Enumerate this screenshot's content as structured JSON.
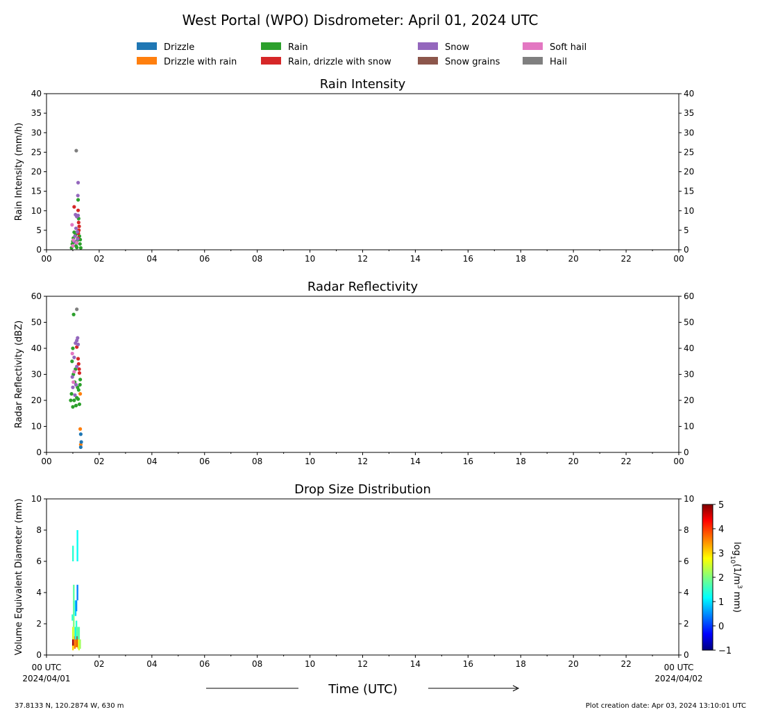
{
  "title": "West Portal (WPO) Disdrometer: April 01, 2024 UTC",
  "legend": [
    {
      "label": "Drizzle",
      "color": "#1f77b4"
    },
    {
      "label": "Drizzle with rain",
      "color": "#ff7f0e"
    },
    {
      "label": "Rain",
      "color": "#2ca02c"
    },
    {
      "label": "Rain, drizzle with snow",
      "color": "#d62728"
    },
    {
      "label": "Snow",
      "color": "#9467bd"
    },
    {
      "label": "Snow grains",
      "color": "#8c564b"
    },
    {
      "label": "Soft hail",
      "color": "#e377c2"
    },
    {
      "label": "Hail",
      "color": "#7f7f7f"
    }
  ],
  "x_tick_labels": [
    "00",
    "02",
    "04",
    "06",
    "08",
    "10",
    "12",
    "14",
    "16",
    "18",
    "20",
    "22",
    "00"
  ],
  "x_start_label": [
    "00 UTC",
    "2024/04/01"
  ],
  "x_end_label": [
    "00 UTC",
    "2024/04/02"
  ],
  "xlabel": "Time (UTC)",
  "footer_left": "37.8133 N, 120.2874 W, 630 m",
  "footer_right": "Plot creation date: Apr 03, 2024 13:10:01 UTC",
  "chart_data": [
    {
      "type": "scatter",
      "title": "Rain Intensity",
      "ylabel": "Rain Intensity (mm/h)",
      "xlim": [
        0,
        24
      ],
      "ylim": [
        0,
        40
      ],
      "yticks": [
        0,
        5,
        10,
        15,
        20,
        25,
        30,
        35,
        40
      ],
      "series": [
        {
          "name": "Rain",
          "color": "#2ca02c",
          "points": [
            [
              0.95,
              0.5
            ],
            [
              0.98,
              1.5
            ],
            [
              1.0,
              2.2
            ],
            [
              1.02,
              3.0
            ],
            [
              1.05,
              4.5
            ],
            [
              1.07,
              2.0
            ],
            [
              1.1,
              3.8
            ],
            [
              1.12,
              1.0
            ],
            [
              1.15,
              0.6
            ],
            [
              1.18,
              2.5
            ],
            [
              1.2,
              12.8
            ],
            [
              1.22,
              8.0
            ],
            [
              1.25,
              3.5
            ],
            [
              1.27,
              1.5
            ],
            [
              1.3,
              0.5
            ],
            [
              1.28,
              2.6
            ]
          ]
        },
        {
          "name": "Rain, drizzle with snow",
          "color": "#d62728",
          "points": [
            [
              1.05,
              11.0
            ],
            [
              1.2,
              10.1
            ],
            [
              1.22,
              7.0
            ],
            [
              1.24,
              6.0
            ],
            [
              1.23,
              5.0
            ],
            [
              1.21,
              4.2
            ],
            [
              1.2,
              3.0
            ]
          ]
        },
        {
          "name": "Snow",
          "color": "#9467bd",
          "points": [
            [
              1.2,
              17.2
            ],
            [
              1.19,
              13.9
            ],
            [
              1.1,
              9.0
            ],
            [
              1.15,
              8.5
            ],
            [
              1.12,
              5.5
            ],
            [
              1.08,
              3.5
            ],
            [
              1.18,
              2.8
            ],
            [
              1.13,
              1.8
            ],
            [
              1.05,
              2.2
            ],
            [
              1.17,
              4.6
            ],
            [
              1.2,
              8.8
            ]
          ]
        },
        {
          "name": "Soft hail",
          "color": "#e377c2",
          "points": [
            [
              0.97,
              6.4
            ],
            [
              1.0,
              1.0
            ],
            [
              1.02,
              2.5
            ],
            [
              1.15,
              1.8
            ]
          ]
        },
        {
          "name": "Hail",
          "color": "#7f7f7f",
          "points": [
            [
              1.13,
              25.4
            ]
          ]
        }
      ]
    },
    {
      "type": "scatter",
      "title": "Radar Reflectivity",
      "ylabel": "Radar Reflectivity (dBZ)",
      "xlim": [
        0,
        24
      ],
      "ylim": [
        0,
        60
      ],
      "yticks": [
        0,
        10,
        20,
        30,
        40,
        50,
        60
      ],
      "series": [
        {
          "name": "Rain",
          "color": "#2ca02c",
          "points": [
            [
              0.92,
              20.0
            ],
            [
              0.95,
              22.5
            ],
            [
              0.97,
              35.0
            ],
            [
              1.0,
              17.5
            ],
            [
              1.0,
              40.0
            ],
            [
              1.02,
              30.0
            ],
            [
              1.03,
              53.0
            ],
            [
              1.05,
              20.0
            ],
            [
              1.07,
              27.0
            ],
            [
              1.1,
              32.0
            ],
            [
              1.12,
              18.0
            ],
            [
              1.15,
              21.0
            ],
            [
              1.18,
              25.0
            ],
            [
              1.2,
              20.5
            ],
            [
              1.22,
              24.0
            ],
            [
              1.25,
              18.5
            ],
            [
              1.27,
              26.0
            ],
            [
              1.28,
              28.0
            ]
          ]
        },
        {
          "name": "Rain, drizzle with snow",
          "color": "#d62728",
          "points": [
            [
              1.15,
              40.5
            ],
            [
              1.2,
              36.0
            ],
            [
              1.22,
              34.0
            ],
            [
              1.24,
              32.0
            ],
            [
              1.25,
              30.5
            ]
          ]
        },
        {
          "name": "Snow",
          "color": "#9467bd",
          "points": [
            [
              0.98,
              29.0
            ],
            [
              1.05,
              36.5
            ],
            [
              1.1,
              42.0
            ],
            [
              1.15,
              43.0
            ],
            [
              1.18,
              44.0
            ],
            [
              1.2,
              41.5
            ],
            [
              1.12,
              26.0
            ],
            [
              1.08,
              22.0
            ],
            [
              1.15,
              33.0
            ],
            [
              1.0,
              25.0
            ]
          ]
        },
        {
          "name": "Soft hail",
          "color": "#e377c2",
          "points": [
            [
              0.98,
              38.0
            ],
            [
              1.02,
              27.0
            ],
            [
              1.05,
              31.0
            ]
          ]
        },
        {
          "name": "Hail",
          "color": "#7f7f7f",
          "points": [
            [
              1.15,
              55.0
            ]
          ]
        },
        {
          "name": "Drizzle with rain",
          "color": "#ff7f0e",
          "points": [
            [
              1.28,
              9.0
            ],
            [
              1.3,
              3.0
            ],
            [
              1.28,
              22.5
            ]
          ]
        },
        {
          "name": "Drizzle",
          "color": "#1f77b4",
          "points": [
            [
              1.3,
              7.0
            ],
            [
              1.32,
              4.0
            ],
            [
              1.3,
              2.0
            ]
          ]
        }
      ]
    },
    {
      "type": "heatmap",
      "title": "Drop Size Distribution",
      "ylabel": "Volume Equivalent Diameter (mm)",
      "xlim": [
        0,
        24
      ],
      "ylim": [
        0,
        10
      ],
      "yticks": [
        0,
        2,
        4,
        6,
        8,
        10
      ],
      "colorbar": {
        "label": "log10(1/m3 mm)",
        "range": [
          -1,
          5
        ],
        "ticks": [
          -1,
          0,
          1,
          2,
          3,
          4,
          5
        ]
      },
      "cells": [
        {
          "x": 1.0,
          "y0": 0.3,
          "y1": 0.8,
          "v": 3.0
        },
        {
          "x": 1.0,
          "y0": 0.6,
          "y1": 1.0,
          "v": 4.8
        },
        {
          "x": 1.0,
          "y0": 1.0,
          "y1": 1.8,
          "v": 2.5
        },
        {
          "x": 1.03,
          "y0": 1.8,
          "y1": 2.5,
          "v": 2.0
        },
        {
          "x": 0.98,
          "y0": 2.2,
          "y1": 2.6,
          "v": 1.5
        },
        {
          "x": 1.03,
          "y0": 2.5,
          "y1": 3.5,
          "v": 1.8
        },
        {
          "x": 1.03,
          "y0": 3.5,
          "y1": 4.5,
          "v": 1.8
        },
        {
          "x": 1.0,
          "y0": 6.0,
          "y1": 7.0,
          "v": 1.5
        },
        {
          "x": 1.07,
          "y0": 0.4,
          "y1": 1.2,
          "v": 3.5
        },
        {
          "x": 1.07,
          "y0": 1.2,
          "y1": 1.8,
          "v": 2.2
        },
        {
          "x": 1.1,
          "y0": 0.5,
          "y1": 1.0,
          "v": 3.8
        },
        {
          "x": 1.1,
          "y0": 1.0,
          "y1": 1.8,
          "v": 1.2
        },
        {
          "x": 1.1,
          "y0": 2.5,
          "y1": 3.5,
          "v": 1.0
        },
        {
          "x": 1.13,
          "y0": 0.5,
          "y1": 1.0,
          "v": 3.2
        },
        {
          "x": 1.13,
          "y0": 1.0,
          "y1": 2.2,
          "v": 1.5
        },
        {
          "x": 1.13,
          "y0": 2.8,
          "y1": 3.5,
          "v": 0.6
        },
        {
          "x": 1.17,
          "y0": 0.5,
          "y1": 1.2,
          "v": 4.5
        },
        {
          "x": 1.17,
          "y0": 1.2,
          "y1": 1.8,
          "v": 2.0
        },
        {
          "x": 1.17,
          "y0": 3.5,
          "y1": 4.5,
          "v": 0.5
        },
        {
          "x": 1.17,
          "y0": 6.0,
          "y1": 8.0,
          "v": 1.3
        },
        {
          "x": 1.2,
          "y0": 0.4,
          "y1": 1.0,
          "v": 3.0
        },
        {
          "x": 1.2,
          "y0": 1.0,
          "y1": 1.8,
          "v": 1.6
        },
        {
          "x": 1.23,
          "y0": 0.3,
          "y1": 1.0,
          "v": 2.5
        },
        {
          "x": 1.23,
          "y0": 1.0,
          "y1": 1.8,
          "v": 1.8
        },
        {
          "x": 1.27,
          "y0": 0.4,
          "y1": 1.0,
          "v": 2.2
        }
      ]
    }
  ]
}
